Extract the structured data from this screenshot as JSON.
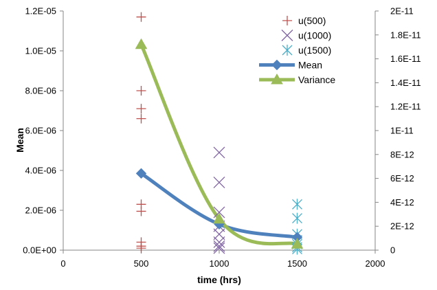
{
  "chart_data": {
    "type": "scatter",
    "xlabel": "time (hrs)",
    "ylabel": "Mean",
    "xlim": [
      0,
      2000
    ],
    "ylim": [
      0,
      1.2e-05
    ],
    "y2lim": [
      0,
      2e-11
    ],
    "grid": false,
    "legend_position": "top-right",
    "x_ticks": [
      {
        "value": 0,
        "label": "0"
      },
      {
        "value": 500,
        "label": "500"
      },
      {
        "value": 1000,
        "label": "1000"
      },
      {
        "value": 1500,
        "label": "1500"
      },
      {
        "value": 2000,
        "label": "2000"
      }
    ],
    "y_ticks": [
      {
        "value": 0,
        "label": "0.0E+00"
      },
      {
        "value": 2e-06,
        "label": "2.0E-06"
      },
      {
        "value": 4e-06,
        "label": "4.0E-06"
      },
      {
        "value": 6e-06,
        "label": "6.0E-06"
      },
      {
        "value": 8e-06,
        "label": "8.0E-06"
      },
      {
        "value": 1e-05,
        "label": "1.0E-05"
      },
      {
        "value": 1.2e-05,
        "label": "1.2E-05"
      }
    ],
    "y2_ticks": [
      {
        "value": 0,
        "label": "0"
      },
      {
        "value": 2e-12,
        "label": "2E-12"
      },
      {
        "value": 4e-12,
        "label": "4E-12"
      },
      {
        "value": 6e-12,
        "label": "6E-12"
      },
      {
        "value": 8e-12,
        "label": "8E-12"
      },
      {
        "value": 1e-11,
        "label": "1E-11"
      },
      {
        "value": 1.2e-11,
        "label": "1.2E-11"
      },
      {
        "value": 1.4e-11,
        "label": "1.4E-11"
      },
      {
        "value": 1.6e-11,
        "label": "1.6E-11"
      },
      {
        "value": 1.8e-11,
        "label": "1.8E-11"
      },
      {
        "value": 2e-11,
        "label": "2E-11"
      }
    ],
    "series": [
      {
        "name": "u(500)",
        "kind": "scatter",
        "marker": "plus",
        "color": "#c0504d",
        "axis": "left",
        "points": [
          {
            "x": 500,
            "y": 1.17e-05
          },
          {
            "x": 500,
            "y": 8e-06
          },
          {
            "x": 500,
            "y": 7.1e-06
          },
          {
            "x": 500,
            "y": 6.6e-06
          },
          {
            "x": 500,
            "y": 2.3e-06
          },
          {
            "x": 500,
            "y": 1.95e-06
          },
          {
            "x": 500,
            "y": 4e-07
          },
          {
            "x": 500,
            "y": 2e-07
          },
          {
            "x": 500,
            "y": 1e-07
          }
        ]
      },
      {
        "name": "u(1000)",
        "kind": "scatter",
        "marker": "x",
        "color": "#8064a2",
        "axis": "left",
        "points": [
          {
            "x": 1000,
            "y": 4.9e-06
          },
          {
            "x": 1000,
            "y": 3.4e-06
          },
          {
            "x": 1000,
            "y": 1.9e-06
          },
          {
            "x": 1000,
            "y": 1.2e-06
          },
          {
            "x": 1000,
            "y": 8e-07
          },
          {
            "x": 1000,
            "y": 4e-07
          },
          {
            "x": 1000,
            "y": 2e-07
          },
          {
            "x": 1000,
            "y": 1e-07
          }
        ]
      },
      {
        "name": "u(1500)",
        "kind": "scatter",
        "marker": "star",
        "color": "#4bacc6",
        "axis": "left",
        "points": [
          {
            "x": 1500,
            "y": 2.3e-06
          },
          {
            "x": 1500,
            "y": 1.6e-06
          },
          {
            "x": 1500,
            "y": 8e-07
          },
          {
            "x": 1500,
            "y": 5e-07
          },
          {
            "x": 1500,
            "y": 3e-07
          },
          {
            "x": 1500,
            "y": 1.5e-07
          },
          {
            "x": 1500,
            "y": 5e-08
          }
        ]
      },
      {
        "name": "Mean",
        "kind": "line",
        "marker": "diamond",
        "color": "#4f81bd",
        "axis": "left",
        "points": [
          {
            "x": 500,
            "y": 3.85e-06
          },
          {
            "x": 1000,
            "y": 1.3e-06
          },
          {
            "x": 1500,
            "y": 6.5e-07
          }
        ]
      },
      {
        "name": "Variance",
        "kind": "line",
        "marker": "triangle",
        "color": "#9bbb59",
        "axis": "right",
        "points": [
          {
            "x": 500,
            "y": 1.72e-11
          },
          {
            "x": 1000,
            "y": 2.6e-12
          },
          {
            "x": 1500,
            "y": 5e-13
          }
        ]
      }
    ]
  }
}
